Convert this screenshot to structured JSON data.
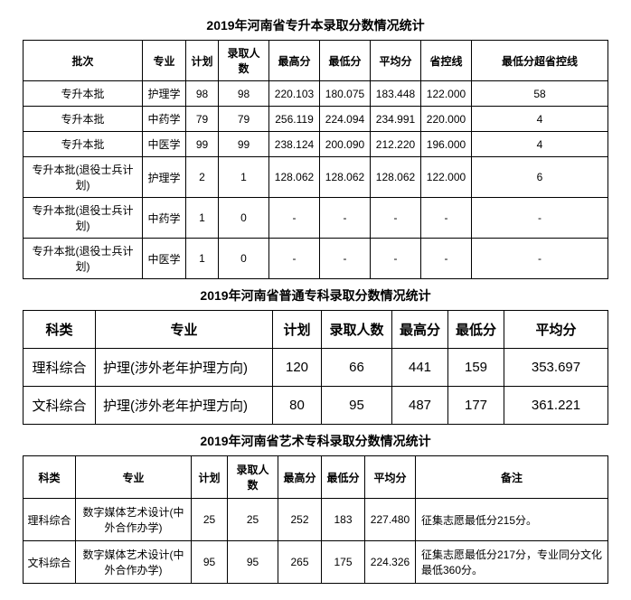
{
  "table1": {
    "title": "2019年河南省专升本录取分数情况统计",
    "headers": [
      "批次",
      "专业",
      "计划",
      "录取人数",
      "最高分",
      "最低分",
      "平均分",
      "省控线",
      "最低分超省控线"
    ],
    "rows": [
      [
        "专升本批",
        "护理学",
        "98",
        "98",
        "220.103",
        "180.075",
        "183.448",
        "122.000",
        "58"
      ],
      [
        "专升本批",
        "中药学",
        "79",
        "79",
        "256.119",
        "224.094",
        "234.991",
        "220.000",
        "4"
      ],
      [
        "专升本批",
        "中医学",
        "99",
        "99",
        "238.124",
        "200.090",
        "212.220",
        "196.000",
        "4"
      ],
      [
        "专升本批(退役士兵计划)",
        "护理学",
        "2",
        "1",
        "128.062",
        "128.062",
        "128.062",
        "122.000",
        "6"
      ],
      [
        "专升本批(退役士兵计划)",
        "中药学",
        "1",
        "0",
        "-",
        "-",
        "-",
        "-",
        "-"
      ],
      [
        "专升本批(退役士兵计划)",
        "中医学",
        "1",
        "0",
        "-",
        "-",
        "-",
        "-",
        "-"
      ]
    ]
  },
  "table2": {
    "title": "2019年河南省普通专科录取分数情况统计",
    "headers": [
      "科类",
      "专业",
      "计划",
      "录取人数",
      "最高分",
      "最低分",
      "平均分"
    ],
    "rows": [
      [
        "理科综合",
        "护理(涉外老年护理方向)",
        "120",
        "66",
        "441",
        "159",
        "353.697"
      ],
      [
        "文科综合",
        "护理(涉外老年护理方向)",
        "80",
        "95",
        "487",
        "177",
        "361.221"
      ]
    ]
  },
  "table3": {
    "title": "2019年河南省艺术专科录取分数情况统计",
    "headers": [
      "科类",
      "专业",
      "计划",
      "录取人数",
      "最高分",
      "最低分",
      "平均分",
      "备注"
    ],
    "rows": [
      [
        "理科综合",
        "数字媒体艺术设计(中外合作办学)",
        "25",
        "25",
        "252",
        "183",
        "227.480",
        "征集志愿最低分215分。"
      ],
      [
        "文科综合",
        "数字媒体艺术设计(中外合作办学)",
        "95",
        "95",
        "265",
        "175",
        "224.326",
        "征集志愿最低分217分，专业同分文化最低360分。"
      ]
    ]
  }
}
